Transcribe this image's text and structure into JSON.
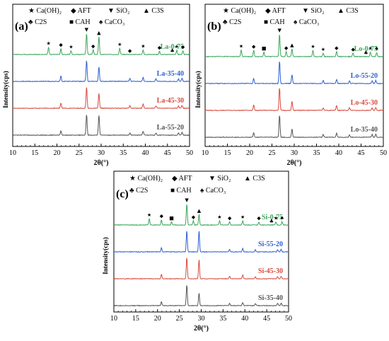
{
  "chart_data": [
    {
      "type": "line",
      "panel_label": "(a)",
      "xlabel": "2θ(°)",
      "ylabel": "Intensity(cps)",
      "xlim": [
        10,
        50
      ],
      "xticks": [
        10,
        15,
        20,
        25,
        30,
        35,
        40,
        45,
        50
      ],
      "legend": {
        "row1": [
          {
            "symbol": "★",
            "text": "Ca(OH)₂"
          },
          {
            "symbol": "◆",
            "text": "AFT"
          },
          {
            "symbol": "▼",
            "text": "SiO₂"
          },
          {
            "symbol": "▲",
            "text": "C3S"
          }
        ],
        "row2": [
          {
            "symbol": "♣",
            "text": "C2S"
          },
          {
            "symbol": "■",
            "text": "CAH"
          },
          {
            "symbol": "♠",
            "text": "CaCO₃"
          }
        ]
      },
      "series": [
        {
          "name": "La-0-75",
          "color": "#3aa55b",
          "peaks": [
            [
              18.1,
              0.35
            ],
            [
              20.9,
              0.28
            ],
            [
              23.2,
              0.18
            ],
            [
              26.7,
              1.0
            ],
            [
              28.2,
              0.22
            ],
            [
              29.5,
              0.85
            ],
            [
              34.2,
              0.3
            ],
            [
              39.5,
              0.22
            ],
            [
              43.2,
              0.15
            ],
            [
              47.1,
              0.2
            ],
            [
              48.5,
              0.18
            ]
          ]
        },
        {
          "name": "La-35-40",
          "color": "#2e5fd0",
          "peaks": [
            [
              20.9,
              0.25
            ],
            [
              26.7,
              1.0
            ],
            [
              29.5,
              0.7
            ],
            [
              36.5,
              0.15
            ],
            [
              39.5,
              0.18
            ],
            [
              42.4,
              0.12
            ],
            [
              47.5,
              0.12
            ],
            [
              48.3,
              0.14
            ]
          ]
        },
        {
          "name": "La-45-30",
          "color": "#d9483b",
          "peaks": [
            [
              20.9,
              0.25
            ],
            [
              26.7,
              1.0
            ],
            [
              29.5,
              0.7
            ],
            [
              36.5,
              0.12
            ],
            [
              39.5,
              0.2
            ],
            [
              42.4,
              0.12
            ],
            [
              47.5,
              0.12
            ],
            [
              48.3,
              0.14
            ]
          ]
        },
        {
          "name": "La-55-20",
          "color": "#555555",
          "peaks": [
            [
              20.9,
              0.2
            ],
            [
              26.7,
              1.0
            ],
            [
              29.5,
              0.95
            ],
            [
              36.5,
              0.1
            ],
            [
              39.5,
              0.18
            ],
            [
              42.4,
              0.1
            ],
            [
              47.5,
              0.12
            ],
            [
              48.3,
              0.14
            ]
          ]
        }
      ],
      "annotations": [
        {
          "symbol": "★",
          "x": 18.1,
          "series": "La-0-75"
        },
        {
          "symbol": "◆",
          "x": 20.9,
          "series": "La-0-75"
        },
        {
          "symbol": "★",
          "x": 23.2,
          "series": "La-0-75"
        },
        {
          "symbol": "▼",
          "x": 26.7,
          "series": "La-0-75"
        },
        {
          "symbol": "◆",
          "x": 28.2,
          "series": "La-0-75"
        },
        {
          "symbol": "▲",
          "x": 29.5,
          "series": "La-0-75"
        },
        {
          "symbol": "★",
          "x": 34.2,
          "series": "La-0-75"
        },
        {
          "symbol": "◆",
          "x": 36.5,
          "series": "La-0-75"
        },
        {
          "symbol": "★",
          "x": 39.5,
          "series": "La-0-75"
        },
        {
          "symbol": "◆",
          "x": 43.2,
          "series": "La-0-75"
        },
        {
          "symbol": "♣",
          "x": 46.1,
          "series": "La-0-75"
        },
        {
          "symbol": "★",
          "x": 47.1,
          "series": "La-0-75"
        },
        {
          "symbol": "◆",
          "x": 48.5,
          "series": "La-0-75"
        }
      ]
    },
    {
      "type": "line",
      "panel_label": "(b)",
      "xlabel": "2θ(°)",
      "ylabel": "Intensity(cps)",
      "xlim": [
        10,
        50
      ],
      "xticks": [
        10,
        15,
        20,
        25,
        30,
        35,
        40,
        45,
        50
      ],
      "legend": {
        "row1": [
          {
            "symbol": "★",
            "text": "Ca(OH)₂"
          },
          {
            "symbol": "◆",
            "text": "AFT"
          },
          {
            "symbol": "▼",
            "text": "SiO₂"
          },
          {
            "symbol": "▲",
            "text": "C3S"
          }
        ],
        "row2": [
          {
            "symbol": "♣",
            "text": "C2S"
          },
          {
            "symbol": "■",
            "text": "CAH"
          },
          {
            "symbol": "♠",
            "text": "CaCO₃"
          }
        ]
      },
      "series": [
        {
          "name": "Lo-0-75",
          "color": "#3aa55b",
          "peaks": [
            [
              18.1,
              0.3
            ],
            [
              20.9,
              0.28
            ],
            [
              23.2,
              0.2
            ],
            [
              26.7,
              1.0
            ],
            [
              28.2,
              0.22
            ],
            [
              29.5,
              0.35
            ],
            [
              34.2,
              0.28
            ],
            [
              36.5,
              0.15
            ],
            [
              39.5,
              0.22
            ],
            [
              43.2,
              0.15
            ],
            [
              47.1,
              0.2
            ],
            [
              48.5,
              0.18
            ]
          ]
        },
        {
          "name": "Lo-55-20",
          "color": "#2e5fd0",
          "peaks": [
            [
              20.9,
              0.22
            ],
            [
              26.7,
              1.0
            ],
            [
              29.5,
              0.4
            ],
            [
              36.5,
              0.14
            ],
            [
              39.5,
              0.18
            ],
            [
              42.4,
              0.12
            ],
            [
              47.5,
              0.12
            ],
            [
              48.3,
              0.14
            ]
          ]
        },
        {
          "name": "Lo-45-30",
          "color": "#d9483b",
          "peaks": [
            [
              20.9,
              0.25
            ],
            [
              26.7,
              1.0
            ],
            [
              29.5,
              0.4
            ],
            [
              36.5,
              0.12
            ],
            [
              39.5,
              0.22
            ],
            [
              42.4,
              0.12
            ],
            [
              47.5,
              0.12
            ],
            [
              48.3,
              0.14
            ]
          ]
        },
        {
          "name": "Lo-35-40",
          "color": "#555555",
          "peaks": [
            [
              20.9,
              0.2
            ],
            [
              26.7,
              1.0
            ],
            [
              29.5,
              0.38
            ],
            [
              36.5,
              0.12
            ],
            [
              39.5,
              0.18
            ],
            [
              42.4,
              0.1
            ],
            [
              47.5,
              0.12
            ],
            [
              48.3,
              0.14
            ]
          ]
        }
      ],
      "annotations": [
        {
          "symbol": "★",
          "x": 18.1,
          "series": "Lo-0-75"
        },
        {
          "symbol": "◆",
          "x": 20.9,
          "series": "Lo-0-75"
        },
        {
          "symbol": "■",
          "x": 23.2,
          "series": "Lo-0-75"
        },
        {
          "symbol": "▼",
          "x": 26.7,
          "series": "Lo-0-75"
        },
        {
          "symbol": "◆",
          "x": 28.2,
          "series": "Lo-0-75"
        },
        {
          "symbol": "▲",
          "x": 29.5,
          "series": "Lo-0-75"
        },
        {
          "symbol": "★",
          "x": 34.2,
          "series": "Lo-0-75"
        },
        {
          "symbol": "★",
          "x": 36.5,
          "series": "Lo-0-75"
        },
        {
          "symbol": "◆",
          "x": 39.5,
          "series": "Lo-0-75"
        },
        {
          "symbol": "◆",
          "x": 43.2,
          "series": "Lo-0-75"
        },
        {
          "symbol": "♣",
          "x": 46.1,
          "series": "Lo-0-75"
        },
        {
          "symbol": "★",
          "x": 47.1,
          "series": "Lo-0-75"
        },
        {
          "symbol": "♠",
          "x": 48.5,
          "series": "Lo-0-75"
        }
      ]
    },
    {
      "type": "line",
      "panel_label": "(c)",
      "xlabel": "2θ(°)",
      "ylabel": "Intensity(cps)",
      "xlim": [
        10,
        50
      ],
      "xticks": [
        10,
        15,
        20,
        25,
        30,
        35,
        40,
        45,
        50
      ],
      "legend": {
        "row1": [
          {
            "symbol": "★",
            "text": "Ca(OH)₂"
          },
          {
            "symbol": "◆",
            "text": "AFT"
          },
          {
            "symbol": "▼",
            "text": "SiO₂"
          },
          {
            "symbol": "▲",
            "text": "C3S"
          }
        ],
        "row2": [
          {
            "symbol": "♣",
            "text": "C2S"
          },
          {
            "symbol": "■",
            "text": "CAH"
          },
          {
            "symbol": "♠",
            "text": "CaCO₃"
          }
        ]
      },
      "series": [
        {
          "name": "Si-0-75",
          "color": "#3aa55b",
          "peaks": [
            [
              18.1,
              0.3
            ],
            [
              20.9,
              0.25
            ],
            [
              23.2,
              0.15
            ],
            [
              26.7,
              1.0
            ],
            [
              28.2,
              0.2
            ],
            [
              29.5,
              0.5
            ],
            [
              34.2,
              0.2
            ],
            [
              36.5,
              0.15
            ],
            [
              39.5,
              0.2
            ],
            [
              43.2,
              0.15
            ],
            [
              47.1,
              0.15
            ],
            [
              48.5,
              0.15
            ]
          ]
        },
        {
          "name": "Si-55-20",
          "color": "#2e5fd0",
          "peaks": [
            [
              20.9,
              0.2
            ],
            [
              26.7,
              1.0
            ],
            [
              29.5,
              1.0
            ],
            [
              36.5,
              0.12
            ],
            [
              39.5,
              0.15
            ],
            [
              42.4,
              0.1
            ],
            [
              47.5,
              0.1
            ],
            [
              48.3,
              0.12
            ]
          ]
        },
        {
          "name": "Si-45-30",
          "color": "#d9483b",
          "peaks": [
            [
              20.9,
              0.22
            ],
            [
              26.7,
              1.0
            ],
            [
              29.5,
              0.9
            ],
            [
              36.5,
              0.12
            ],
            [
              39.5,
              0.18
            ],
            [
              42.4,
              0.1
            ],
            [
              47.5,
              0.1
            ],
            [
              48.3,
              0.12
            ]
          ]
        },
        {
          "name": "Si-35-40",
          "color": "#555555",
          "peaks": [
            [
              20.9,
              0.18
            ],
            [
              26.7,
              1.0
            ],
            [
              29.5,
              0.6
            ],
            [
              36.5,
              0.1
            ],
            [
              39.5,
              0.15
            ],
            [
              42.4,
              0.1
            ],
            [
              47.5,
              0.1
            ],
            [
              48.3,
              0.12
            ]
          ]
        }
      ],
      "annotations": [
        {
          "symbol": "★",
          "x": 18.1,
          "series": "Si-0-75"
        },
        {
          "symbol": "◆",
          "x": 20.9,
          "series": "Si-0-75"
        },
        {
          "symbol": "■",
          "x": 23.2,
          "series": "Si-0-75"
        },
        {
          "symbol": "▼",
          "x": 26.7,
          "series": "Si-0-75"
        },
        {
          "symbol": "◆",
          "x": 28.2,
          "series": "Si-0-75"
        },
        {
          "symbol": "▲",
          "x": 29.5,
          "series": "Si-0-75"
        },
        {
          "symbol": "★",
          "x": 34.2,
          "series": "Si-0-75"
        },
        {
          "symbol": "◆",
          "x": 36.5,
          "series": "Si-0-75"
        },
        {
          "symbol": "★",
          "x": 39.5,
          "series": "Si-0-75"
        },
        {
          "symbol": "◆",
          "x": 43.2,
          "series": "Si-0-75"
        },
        {
          "symbol": "♣",
          "x": 46.1,
          "series": "Si-0-75"
        },
        {
          "symbol": "★",
          "x": 47.1,
          "series": "Si-0-75"
        },
        {
          "symbol": "♠",
          "x": 48.5,
          "series": "Si-0-75"
        }
      ]
    }
  ]
}
